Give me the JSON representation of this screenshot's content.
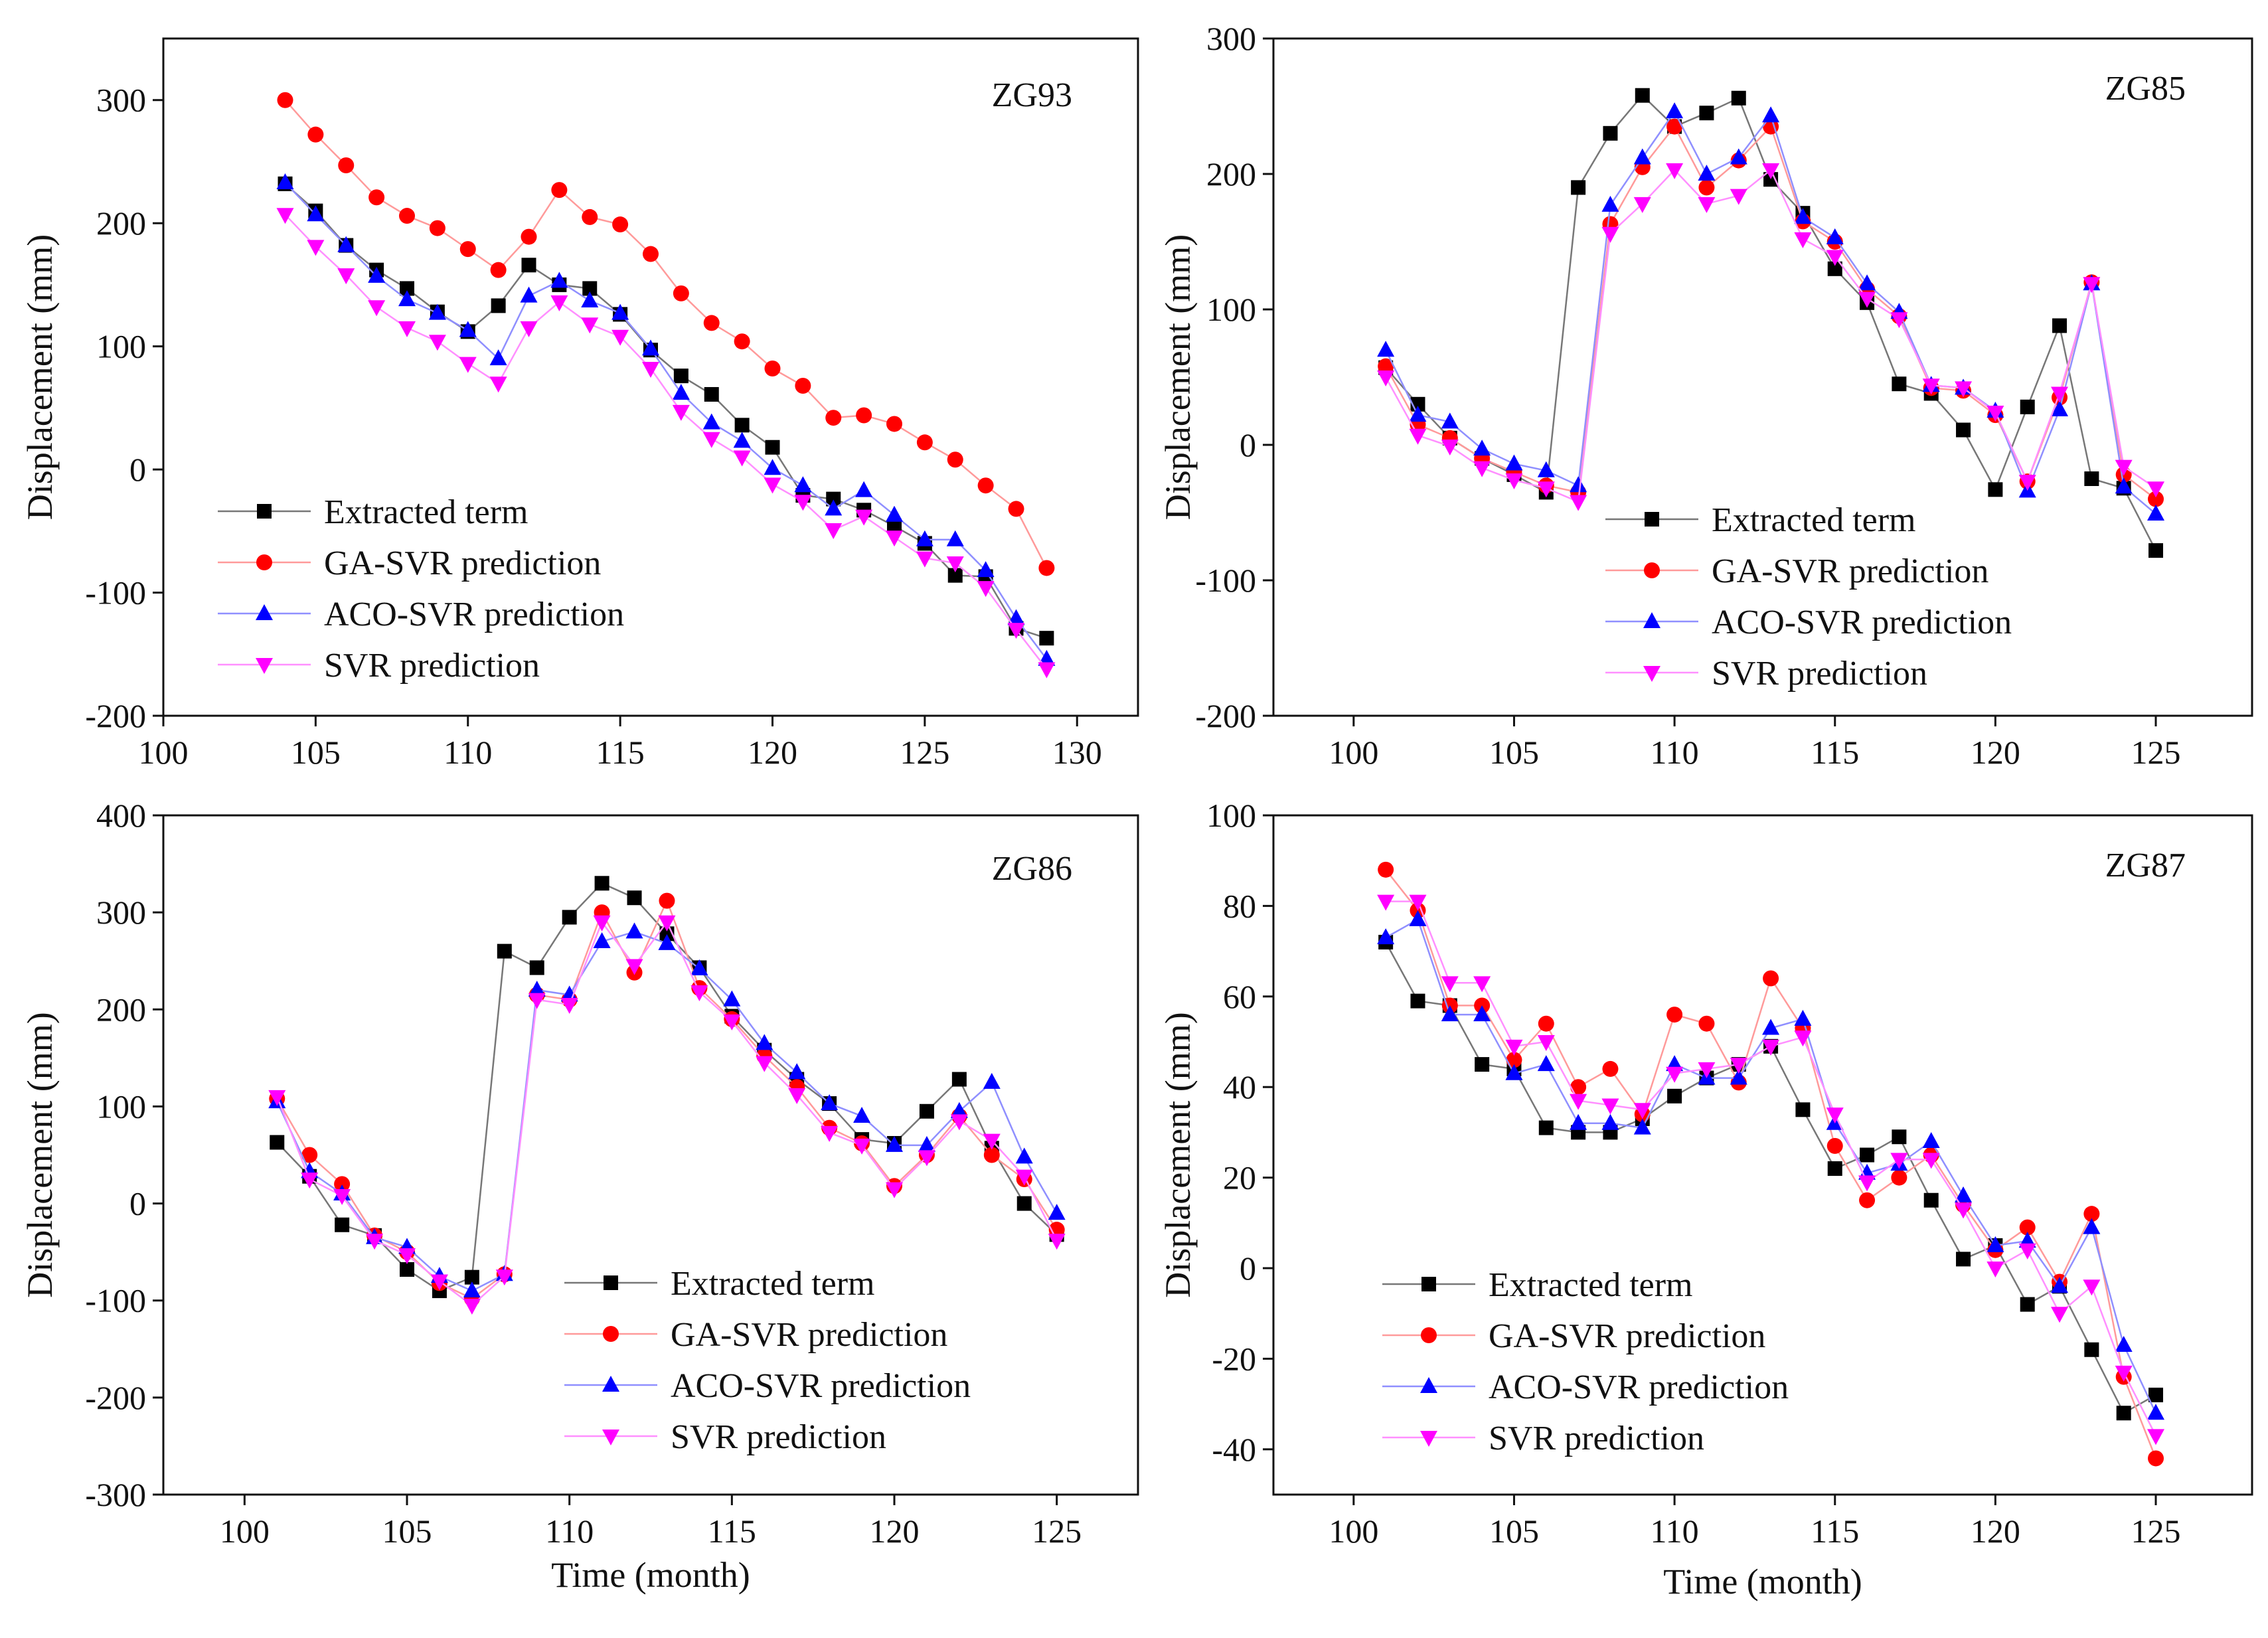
{
  "figure": {
    "series_colors": {
      "Extracted term": "#000000",
      "GA-SVR prediction": "#ff0000",
      "ACO-SVR prediction": "#0000ff",
      "SVR prediction": "#ff00ff"
    },
    "line_colors": {
      "Extracted term": "#777777",
      "GA-SVR prediction": "#ff9a9a",
      "ACO-SVR prediction": "#8f8fff",
      "SVR prediction": "#ff8fff"
    }
  },
  "chart_data": [
    {
      "type": "line",
      "label": "ZG93",
      "xlabel": "",
      "ylabel": "Displacement (mm)",
      "xlim": [
        100,
        132
      ],
      "ylim": [
        -200,
        350
      ],
      "xticks": [
        100,
        105,
        110,
        115,
        120,
        125,
        130
      ],
      "yticks": [
        -200,
        -100,
        0,
        100,
        200,
        300
      ],
      "x": [
        104,
        105,
        106,
        107,
        108,
        109,
        110,
        111,
        112,
        113,
        114,
        115,
        116,
        117,
        118,
        119,
        120,
        121,
        122,
        123,
        124,
        125,
        126,
        127,
        128,
        129
      ],
      "series": [
        {
          "name": "Extracted term",
          "marker": "square",
          "values": [
            232,
            210,
            182,
            162,
            147,
            128,
            112,
            133,
            166,
            150,
            147,
            126,
            97,
            76,
            61,
            36,
            18,
            -21,
            -24,
            -33,
            -46,
            -60,
            -86,
            -87,
            -129,
            -137
          ]
        },
        {
          "name": "GA-SVR prediction",
          "marker": "circle",
          "values": [
            300,
            272,
            247,
            221,
            206,
            196,
            179,
            162,
            189,
            227,
            205,
            199,
            175,
            143,
            119,
            104,
            82,
            68,
            42,
            44,
            37,
            22,
            8,
            -13,
            -32,
            -80
          ]
        },
        {
          "name": "ACO-SVR prediction",
          "marker": "triangle-up",
          "values": [
            233,
            207,
            182,
            157,
            138,
            127,
            113,
            90,
            141,
            153,
            137,
            127,
            98,
            62,
            38,
            23,
            1,
            -13,
            -32,
            -17,
            -37,
            -57,
            -57,
            -82,
            -121,
            -154
          ]
        },
        {
          "name": "SVR prediction",
          "marker": "triangle-down",
          "values": [
            207,
            181,
            158,
            132,
            115,
            104,
            86,
            70,
            115,
            136,
            118,
            108,
            82,
            47,
            25,
            10,
            -12,
            -26,
            -49,
            -38,
            -55,
            -72,
            -76,
            -96,
            -130,
            -162
          ]
        }
      ]
    },
    {
      "type": "line",
      "label": "ZG85",
      "xlabel": "",
      "ylabel": "Displacement (mm)",
      "xlim": [
        97.5,
        128
      ],
      "ylim": [
        -200,
        300
      ],
      "xticks": [
        100,
        105,
        110,
        115,
        120,
        125
      ],
      "yticks": [
        -200,
        -100,
        0,
        100,
        200,
        300
      ],
      "x": [
        101,
        102,
        103,
        104,
        105,
        106,
        107,
        108,
        109,
        110,
        111,
        112,
        113,
        114,
        115,
        116,
        117,
        118,
        119,
        120,
        121,
        122,
        123,
        124,
        125
      ],
      "series": [
        {
          "name": "Extracted term",
          "marker": "square",
          "values": [
            57,
            30,
            5,
            -10,
            -22,
            -35,
            190,
            230,
            258,
            235,
            245,
            256,
            196,
            171,
            130,
            105,
            45,
            38,
            11,
            -33,
            28,
            88,
            -25,
            -32,
            -78
          ]
        },
        {
          "name": "GA-SVR prediction",
          "marker": "circle",
          "values": [
            58,
            15,
            5,
            -10,
            -20,
            -30,
            -35,
            163,
            205,
            235,
            190,
            210,
            235,
            165,
            150,
            115,
            95,
            42,
            40,
            22,
            -27,
            35,
            120,
            -22,
            -40
          ]
        },
        {
          "name": "ACO-SVR prediction",
          "marker": "triangle-up",
          "values": [
            70,
            22,
            17,
            -3,
            -14,
            -19,
            -30,
            177,
            212,
            246,
            200,
            212,
            243,
            168,
            153,
            119,
            98,
            44,
            42,
            25,
            -34,
            26,
            119,
            -31,
            -51
          ]
        },
        {
          "name": "SVR prediction",
          "marker": "triangle-down",
          "values": [
            50,
            7,
            -1,
            -17,
            -26,
            -32,
            -42,
            156,
            178,
            203,
            178,
            184,
            203,
            152,
            139,
            108,
            93,
            44,
            42,
            24,
            -27,
            38,
            119,
            -16,
            -32
          ]
        }
      ]
    },
    {
      "type": "line",
      "label": "ZG86",
      "xlabel": "Time (month)",
      "ylabel": "Displacement (mm)",
      "xlim": [
        97.5,
        127.5
      ],
      "ylim": [
        -300,
        400
      ],
      "xticks": [
        100,
        105,
        110,
        115,
        120,
        125
      ],
      "yticks": [
        -300,
        -200,
        -100,
        0,
        100,
        200,
        300,
        400
      ],
      "x": [
        101,
        102,
        103,
        104,
        105,
        106,
        107,
        108,
        109,
        110,
        111,
        112,
        113,
        114,
        115,
        116,
        117,
        118,
        119,
        120,
        121,
        122,
        123,
        124,
        125
      ],
      "series": [
        {
          "name": "Extracted term",
          "marker": "square",
          "values": [
            63,
            28,
            -22,
            -33,
            -68,
            -90,
            -76,
            260,
            243,
            295,
            330,
            315,
            278,
            243,
            193,
            158,
            128,
            103,
            66,
            62,
            95,
            128,
            57,
            0,
            -32
          ]
        },
        {
          "name": "GA-SVR prediction",
          "marker": "circle",
          "values": [
            108,
            50,
            20,
            -33,
            -50,
            -82,
            -98,
            -73,
            215,
            210,
            300,
            238,
            312,
            222,
            190,
            152,
            120,
            78,
            62,
            18,
            50,
            90,
            50,
            25,
            -27
          ]
        },
        {
          "name": "ACO-SVR prediction",
          "marker": "triangle-up",
          "values": [
            105,
            33,
            10,
            -35,
            -45,
            -75,
            -90,
            -73,
            220,
            215,
            270,
            280,
            268,
            242,
            210,
            165,
            135,
            103,
            90,
            60,
            60,
            95,
            125,
            48,
            -10
          ]
        },
        {
          "name": "SVR prediction",
          "marker": "triangle-down",
          "values": [
            110,
            25,
            8,
            -38,
            -53,
            -80,
            -105,
            -75,
            210,
            205,
            290,
            245,
            290,
            218,
            188,
            145,
            112,
            73,
            60,
            15,
            48,
            85,
            65,
            28,
            -38
          ]
        }
      ]
    },
    {
      "type": "line",
      "label": "ZG87",
      "xlabel": "Time (month)",
      "ylabel": "Displacement (mm)",
      "xlim": [
        97.5,
        128
      ],
      "ylim": [
        -50,
        100
      ],
      "xticks": [
        100,
        105,
        110,
        115,
        120,
        125
      ],
      "yticks": [
        -40,
        -20,
        0,
        20,
        40,
        60,
        80,
        100
      ],
      "x": [
        101,
        102,
        103,
        104,
        105,
        106,
        107,
        108,
        109,
        110,
        111,
        112,
        113,
        114,
        115,
        116,
        117,
        118,
        119,
        120,
        121,
        122,
        123,
        124,
        125
      ],
      "series": [
        {
          "name": "Extracted term",
          "marker": "square",
          "values": [
            72,
            59,
            58,
            45,
            44,
            31,
            30,
            30,
            33,
            38,
            42,
            45,
            49,
            35,
            22,
            25,
            29,
            15,
            2,
            5,
            -8,
            -4,
            -18,
            -32,
            -28
          ]
        },
        {
          "name": "GA-SVR prediction",
          "marker": "circle",
          "values": [
            88,
            79,
            58,
            58,
            46,
            54,
            40,
            44,
            34,
            56,
            54,
            41,
            64,
            53,
            27,
            15,
            20,
            25,
            14,
            4,
            9,
            -3,
            12,
            -24,
            -42
          ]
        },
        {
          "name": "ACO-SVR prediction",
          "marker": "triangle-up",
          "values": [
            73,
            77,
            56,
            56,
            43,
            45,
            32,
            32,
            31,
            45,
            42,
            42,
            53,
            55,
            32,
            21,
            23,
            28,
            16,
            5,
            6,
            -4,
            9,
            -17,
            -32
          ]
        },
        {
          "name": "SVR prediction",
          "marker": "triangle-down",
          "values": [
            81,
            81,
            63,
            63,
            49,
            50,
            37,
            36,
            35,
            43,
            44,
            45,
            49,
            51,
            34,
            19,
            24,
            24,
            13,
            0,
            4,
            -10,
            -4,
            -23,
            -37
          ]
        }
      ]
    }
  ]
}
